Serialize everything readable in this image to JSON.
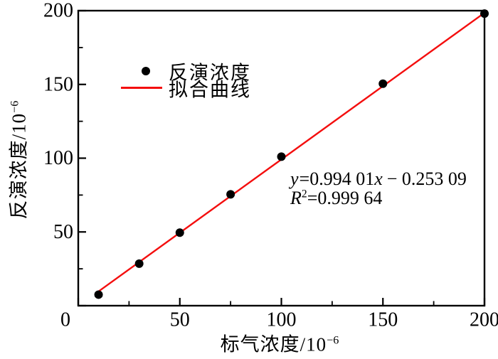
{
  "chart_data": {
    "type": "scatter",
    "title": "",
    "xlabel": "标气浓度/10⁻⁶",
    "ylabel": "反演浓度/10⁻⁶",
    "xlabel_parts": {
      "base": "标气浓度/10",
      "sup": "−6"
    },
    "ylabel_parts": {
      "base": "反演浓度/10",
      "sup": "−6"
    },
    "xlim": [
      0,
      200
    ],
    "ylim": [
      0,
      200
    ],
    "grid": false,
    "x_major_ticks": [
      0,
      50,
      100,
      150,
      200
    ],
    "x_minor_ticks": [
      25,
      75,
      125,
      175
    ],
    "x_tick_labels": [
      "0",
      "50",
      "100",
      "150",
      "200"
    ],
    "y_major_ticks": [
      0,
      50,
      100,
      150,
      200
    ],
    "y_minor_ticks": [
      25,
      75,
      125,
      175
    ],
    "y_labeled_ticks": [
      50,
      100,
      150,
      200
    ],
    "y_tick_labels": [
      "50",
      "100",
      "150",
      "200"
    ],
    "series": [
      {
        "name": "反演浓度",
        "type": "scatter",
        "color": "#000000",
        "x": [
          10,
          30,
          50,
          75,
          100,
          150,
          200
        ],
        "y": [
          7.5,
          28.5,
          49.5,
          75.5,
          101,
          150.5,
          198
        ]
      },
      {
        "name": "拟合曲线",
        "type": "line",
        "color": "#f40e0e",
        "fit": {
          "slope": 0.99401,
          "intercept": -0.25309,
          "r_squared": 0.99964,
          "x_start": 9.5,
          "x_end": 201.5
        }
      }
    ],
    "legend": {
      "position": "upper-left-inside",
      "entries": [
        {
          "label": "反演浓度",
          "marker": "dot",
          "color": "#000000"
        },
        {
          "label": "拟合曲线",
          "marker": "line",
          "color": "#f40e0e"
        }
      ]
    },
    "annotation": {
      "eq_y": "y",
      "eq_mid": "=0.994 01",
      "eq_x": "x",
      "eq_tail": "− 0.253 09",
      "r_var": "R",
      "r_sup": "2",
      "r_rest": "=0.999 64"
    },
    "colors": {
      "points": "#000000",
      "fit_line": "#f40e0e",
      "axis": "#000000",
      "background": "#ffffff"
    }
  }
}
